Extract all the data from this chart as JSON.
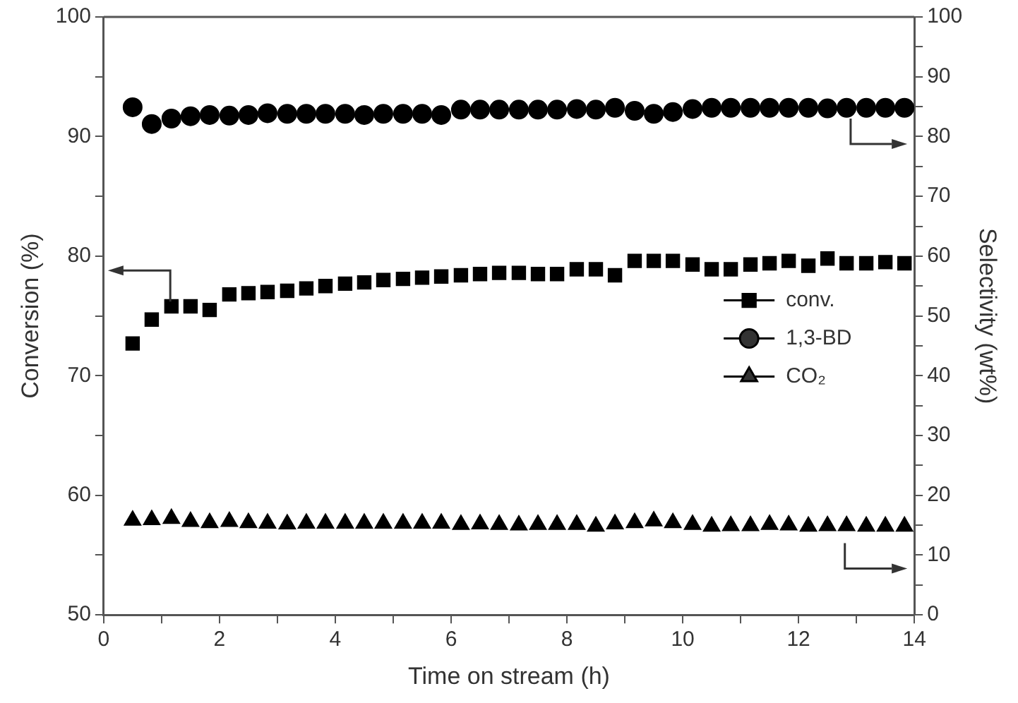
{
  "chart_data": {
    "type": "scatter",
    "xlabel": "Time on stream (h)",
    "ylabel": "Conversion (%)",
    "y2label": "Selectivity (wt%)",
    "x": [
      0.5,
      0.83,
      1.17,
      1.5,
      1.83,
      2.17,
      2.5,
      2.83,
      3.17,
      3.5,
      3.83,
      4.17,
      4.5,
      4.83,
      5.17,
      5.5,
      5.83,
      6.17,
      6.5,
      6.83,
      7.17,
      7.5,
      7.83,
      8.17,
      8.5,
      8.83,
      9.17,
      9.5,
      9.83,
      10.17,
      10.5,
      10.83,
      11.17,
      11.5,
      11.83,
      12.17,
      12.5,
      12.83,
      13.17,
      13.5,
      13.83
    ],
    "series": [
      {
        "name": "conv.",
        "color": "#000000",
        "marker": "square",
        "values": [
          72.7,
          74.7,
          75.8,
          75.8,
          75.5,
          76.8,
          76.9,
          77.0,
          77.1,
          77.3,
          77.5,
          77.7,
          77.8,
          78.0,
          78.1,
          78.2,
          78.3,
          78.4,
          78.5,
          78.6,
          78.6,
          78.5,
          78.5,
          78.9,
          78.9,
          78.4,
          79.6,
          79.6,
          79.6,
          79.3,
          78.9,
          78.9,
          79.3,
          79.4,
          79.6,
          79.2,
          79.8,
          79.4,
          79.4,
          79.5,
          79.4
        ]
      },
      {
        "name": "1,3-BD",
        "color": "#000000",
        "marker": "circle",
        "axis": "y2",
        "values": [
          84.9,
          82.1,
          83.0,
          83.4,
          83.6,
          83.5,
          83.6,
          83.9,
          83.8,
          83.8,
          83.8,
          83.8,
          83.6,
          83.8,
          83.8,
          83.8,
          83.6,
          84.5,
          84.5,
          84.5,
          84.5,
          84.5,
          84.5,
          84.6,
          84.5,
          84.8,
          84.3,
          83.8,
          84.1,
          84.6,
          84.8,
          84.8,
          84.8,
          84.8,
          84.8,
          84.8,
          84.7,
          84.8,
          84.8,
          84.8,
          84.8
        ]
      },
      {
        "name": "CO₂",
        "color": "#000000",
        "marker": "triangle",
        "axis": "y2",
        "values": [
          15.8,
          15.9,
          16.1,
          15.6,
          15.4,
          15.6,
          15.4,
          15.3,
          15.2,
          15.3,
          15.3,
          15.3,
          15.3,
          15.3,
          15.3,
          15.3,
          15.3,
          15.1,
          15.2,
          15.1,
          15.0,
          15.1,
          15.1,
          15.1,
          14.8,
          15.2,
          15.4,
          15.7,
          15.4,
          15.1,
          14.8,
          14.9,
          14.9,
          15.1,
          15.0,
          14.8,
          14.9,
          14.9,
          14.8,
          14.8,
          14.8
        ]
      }
    ],
    "xlim": [
      0,
      14
    ],
    "xticks": [
      0,
      {
        "value": 1,
        "label": null
      },
      2,
      {
        "value": 3,
        "label": null
      },
      4,
      {
        "value": 5,
        "label": null
      },
      6,
      {
        "value": 7,
        "label": null
      },
      8,
      {
        "value": 9,
        "label": null
      },
      10,
      {
        "value": 11,
        "label": null
      },
      12,
      {
        "value": 13,
        "label": null
      },
      14
    ],
    "ylim": [
      50,
      100
    ],
    "yticks": [
      50,
      {
        "value": 55,
        "label": null
      },
      60,
      {
        "value": 65,
        "label": null
      },
      70,
      {
        "value": 75,
        "label": null
      },
      80,
      {
        "value": 85,
        "label": null
      },
      90,
      {
        "value": 95,
        "label": null
      },
      100
    ],
    "y2lim": [
      0,
      100
    ],
    "y2ticks": [
      0,
      {
        "value": 5,
        "label": null
      },
      10,
      {
        "value": 15,
        "label": null
      },
      20,
      {
        "value": 25,
        "label": null
      },
      30,
      {
        "value": 35,
        "label": null
      },
      40,
      {
        "value": 45,
        "label": null
      },
      50,
      {
        "value": 55,
        "label": null
      },
      60,
      {
        "value": 65,
        "label": null
      },
      70,
      {
        "value": 75,
        "label": null
      },
      80,
      {
        "value": 85,
        "label": null
      },
      90,
      {
        "value": 95,
        "label": null
      },
      100
    ],
    "grid": false,
    "legend": "right"
  }
}
